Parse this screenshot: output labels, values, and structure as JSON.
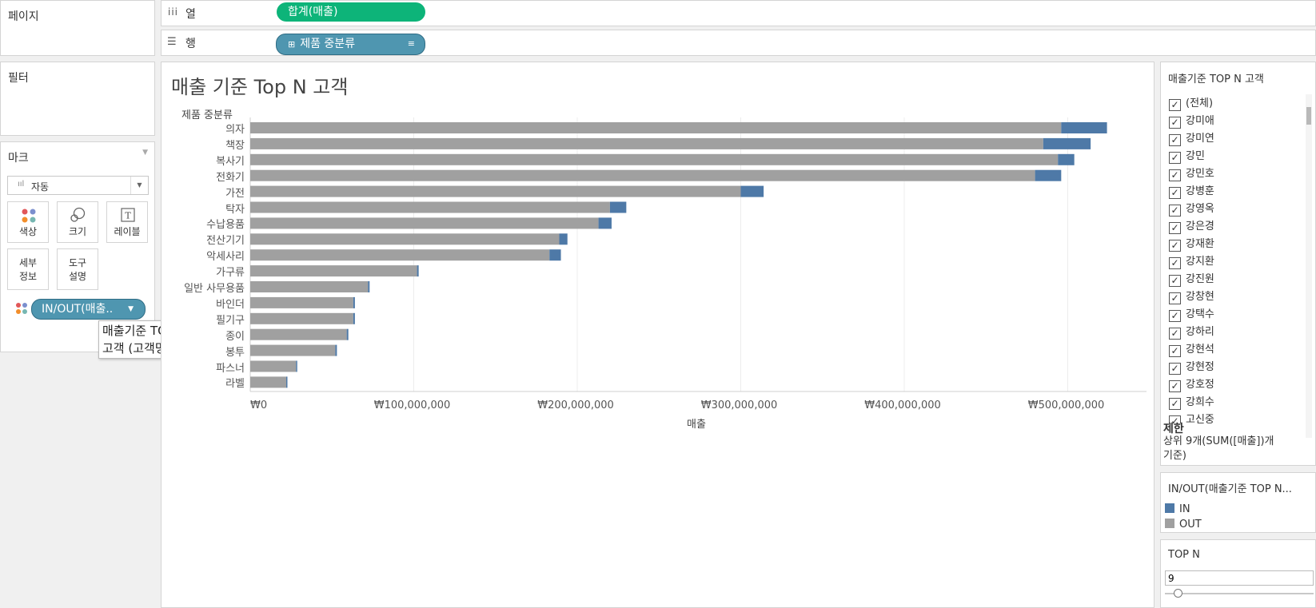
{
  "pages": {
    "title": "페이지"
  },
  "filters": {
    "title": "필터"
  },
  "marks": {
    "title": "마크",
    "type_select": "자동",
    "buttons": {
      "color": "색상",
      "size": "크기",
      "label": "레이블",
      "detail": "세부\n정보",
      "tooltip": "도구\n설명"
    },
    "pill": "IN/OUT(매출.."
  },
  "tooltip": {
    "line1": "매출기준 TOP N",
    "line2": "고객 (고객명)"
  },
  "shelves": {
    "columns": {
      "label": "열",
      "pill": "합계(매출)"
    },
    "rows": {
      "label": "행",
      "pill": "제품 중분류"
    }
  },
  "colors": {
    "in": "#4e79a7",
    "out": "#a0a0a0",
    "green_pill": "#0db479",
    "blue_pill": "#4f96b0"
  },
  "chart_data": {
    "type": "bar",
    "title": "매출 기준 Top N 고객",
    "row_header": "제품 중분류",
    "xlabel": "매출",
    "xlim": [
      0,
      550000000
    ],
    "xticks": [
      0,
      100000000,
      200000000,
      300000000,
      400000000,
      500000000
    ],
    "xtick_labels": [
      "₩0",
      "₩100,000,000",
      "₩200,000,000",
      "₩300,000,000",
      "₩400,000,000",
      "₩500,000,000"
    ],
    "categories": [
      "의자",
      "책장",
      "복사기",
      "전화기",
      "가전",
      "탁자",
      "수납용품",
      "전산기기",
      "악세사리",
      "가구류",
      "일반 사무용품",
      "바인더",
      "필기구",
      "종이",
      "봉투",
      "파스너",
      "라벨"
    ],
    "series": [
      {
        "name": "OUT",
        "values": [
          496000000,
          485000000,
          494000000,
          480000000,
          300000000,
          220000000,
          213000000,
          189000000,
          183000000,
          102000000,
          72000000,
          63000000,
          63000000,
          59000000,
          52000000,
          28000000,
          22000000
        ]
      },
      {
        "name": "IN",
        "values": [
          28000000,
          29000000,
          10000000,
          16000000,
          14000000,
          10000000,
          8000000,
          5000000,
          7000000,
          1000000,
          1000000,
          1000000,
          1000000,
          1000000,
          1000000,
          500000,
          500000
        ]
      }
    ],
    "grid": true
  },
  "filter_card": {
    "title": "매출기준 TOP N 고객",
    "items": [
      "(전체)",
      "강미애",
      "강미연",
      "강민",
      "강민호",
      "강병훈",
      "강영옥",
      "강은경",
      "강재환",
      "강지환",
      "강진원",
      "강창현",
      "강택수",
      "강하리",
      "강현석",
      "강현정",
      "강호정",
      "강희수",
      "고신중"
    ],
    "limit_title": "제한",
    "limit_text": "상위 9개(SUM([매출])개\n기준)"
  },
  "legend_card": {
    "title": "IN/OUT(매출기준 TOP N...",
    "entries": [
      {
        "label": "IN",
        "color": "#4e79a7"
      },
      {
        "label": "OUT",
        "color": "#a0a0a0"
      }
    ]
  },
  "topn_card": {
    "title": "TOP N",
    "value": "9",
    "slider_fraction": 0.09
  }
}
